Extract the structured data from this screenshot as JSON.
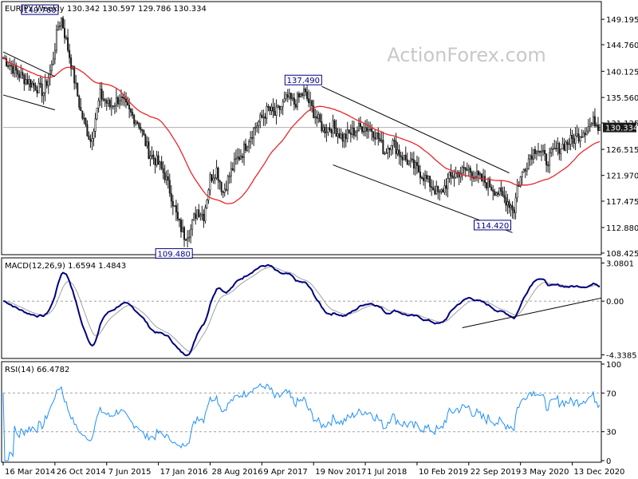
{
  "watermark": "ActionForex.com",
  "colors": {
    "candle": "#1a1a1a",
    "sma": "#e8262b",
    "macd": "#000080",
    "signal": "#a0a0a0",
    "rsi": "#1e90ff",
    "label_box_border": "#000080",
    "label_text": "#000080",
    "last_price_bg": "#1a1a1a",
    "last_price_text": "#ffffff"
  },
  "x_axis": {
    "ticks": [
      "16 Mar 2014",
      "26 Oct 2014",
      "7 Jun 2015",
      "17 Jan 2016",
      "28 Aug 2016",
      "9 Apr 2017",
      "19 Nov 2017",
      "1 Jul 2018",
      "10 Feb 2019",
      "22 Sep 2019",
      "3 May 2020",
      "13 Dec 2020"
    ],
    "tick_weeks": [
      0,
      32,
      64,
      96,
      128,
      160,
      192,
      224,
      256,
      288,
      320,
      352
    ]
  },
  "chart_data": [
    {
      "type": "candlestick",
      "title": "EURJPY,Weekly  130.342 130.597 129.786 130.334",
      "ylim": [
        108.425,
        152.0
      ],
      "y_ticks": [
        "149.195",
        "144.760",
        "140.125",
        "135.560",
        "131.125",
        "126.515",
        "121.970",
        "117.475",
        "112.880",
        "108.425"
      ],
      "y_tick_values": [
        149.195,
        144.76,
        140.125,
        135.56,
        131.125,
        126.515,
        121.97,
        117.475,
        112.88,
        108.425
      ],
      "last_price": "130.334",
      "last_price_value": 130.334,
      "weeks": 370,
      "anchors_week": [
        0,
        10,
        20,
        25,
        30,
        34,
        36,
        42,
        48,
        54,
        60,
        66,
        72,
        78,
        84,
        90,
        96,
        100,
        104,
        108,
        112,
        116,
        118,
        120,
        124,
        128,
        132,
        136,
        140,
        144,
        148,
        152,
        156,
        160,
        164,
        168,
        172,
        176,
        180,
        186,
        192,
        198,
        204,
        210,
        216,
        222,
        228,
        232,
        236,
        240,
        246,
        252,
        258,
        264,
        270,
        276,
        282,
        288,
        294,
        300,
        306,
        312,
        316,
        318,
        322,
        326,
        330,
        336,
        342,
        348,
        354,
        360,
        366,
        369
      ],
      "anchors_price": [
        142.5,
        139.5,
        137.5,
        136.5,
        141.0,
        148.0,
        149.3,
        141.5,
        133.0,
        128.0,
        136.0,
        134.0,
        135.5,
        133.0,
        131.0,
        126.0,
        124.0,
        122.0,
        118.5,
        114.0,
        111.5,
        112.5,
        114.5,
        116.0,
        115.0,
        121.5,
        123.0,
        119.0,
        122.0,
        124.5,
        126.0,
        128.5,
        130.5,
        132.0,
        133.5,
        132.5,
        134.0,
        135.5,
        134.5,
        136.5,
        133.0,
        130.0,
        130.5,
        128.5,
        129.5,
        130.5,
        130.0,
        128.5,
        126.0,
        128.0,
        125.5,
        124.0,
        122.5,
        120.5,
        118.5,
        121.5,
        122.5,
        123.0,
        121.5,
        120.5,
        119.0,
        117.5,
        116.0,
        120.0,
        123.0,
        125.5,
        127.0,
        124.5,
        126.5,
        127.5,
        128.5,
        130.0,
        131.5,
        130.3
      ],
      "annotations": [
        {
          "label": "149.760",
          "week": 34,
          "price": 149.76
        },
        {
          "label": "137.490",
          "week": 197,
          "price": 137.49
        },
        {
          "label": "109.480",
          "week": 117,
          "price": 109.48
        },
        {
          "label": "114.420",
          "week": 314,
          "price": 114.42
        }
      ],
      "trendlines": [
        {
          "name": "wedge-upper",
          "from": [
            0,
            143.5
          ],
          "to": [
            32,
            139.2
          ]
        },
        {
          "name": "wedge-lower",
          "from": [
            0,
            136.0
          ],
          "to": [
            32,
            133.4
          ]
        },
        {
          "name": "channel-upper",
          "from": [
            197,
            137.49
          ],
          "to": [
            313,
            122.4
          ]
        },
        {
          "name": "channel-lower",
          "from": [
            204,
            123.8
          ],
          "to": [
            315,
            112.0
          ]
        }
      ],
      "sma_label": "",
      "horizontal_line": 130.334
    },
    {
      "type": "line",
      "title": "MACD(12,26,9) 1.6594 1.4843",
      "ylim": [
        -4.5,
        3.3
      ],
      "y_ticks": [
        "3.0801",
        "0.00",
        "-4.3385"
      ],
      "y_tick_values": [
        3.0801,
        0.0,
        -4.3385
      ],
      "series": [
        {
          "name": "MACD"
        },
        {
          "name": "Signal"
        }
      ],
      "trendline": {
        "from": [
          284,
          -2.15
        ],
        "to": [
          370,
          0.25
        ]
      }
    },
    {
      "type": "line",
      "title": "RSI(14) 66.4782",
      "ylim": [
        0,
        100
      ],
      "y_ticks": [
        "100",
        "70",
        "30",
        "0"
      ],
      "y_tick_values": [
        100,
        70,
        30,
        0
      ],
      "levels": [
        70,
        30
      ],
      "series": [
        {
          "name": "RSI(14)"
        }
      ]
    }
  ]
}
